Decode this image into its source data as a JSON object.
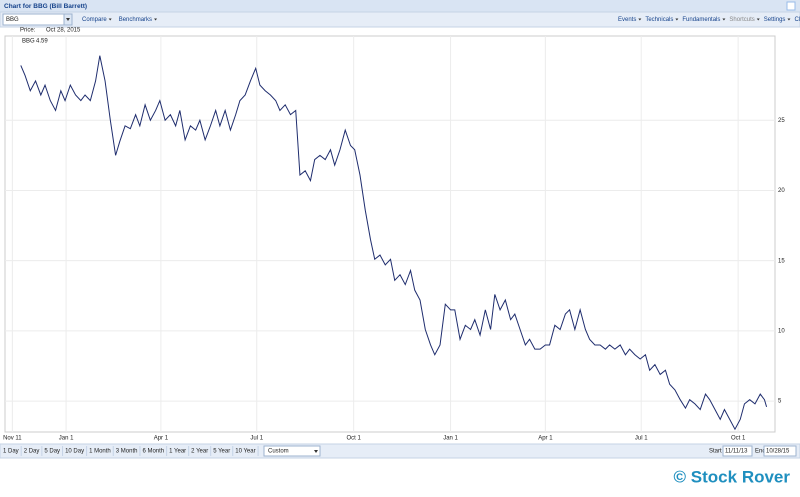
{
  "window": {
    "title": "Chart for BBG (Bill Barrett)"
  },
  "toolbar": {
    "symbol": "BBG",
    "left": [
      "Compare",
      "Benchmarks"
    ],
    "right": [
      "Events",
      "Technicals",
      "Fundamentals",
      "Shortcuts",
      "Settings",
      "Clear"
    ]
  },
  "chart_data": {
    "type": "line",
    "price_label": "Price:",
    "date": "Oct 28, 2015",
    "xlim": [
      -7,
      724
    ],
    "ylim": [
      2.8,
      31
    ],
    "xticks": [
      {
        "value": 0,
        "label": "Nov 11"
      },
      {
        "value": 51,
        "label": "Jan 1"
      },
      {
        "value": 141,
        "label": "Apr 1"
      },
      {
        "value": 232,
        "label": "Jul 1"
      },
      {
        "value": 324,
        "label": "Oct 1"
      },
      {
        "value": 416,
        "label": "Jan 1"
      },
      {
        "value": 506,
        "label": "Apr 1"
      },
      {
        "value": 597,
        "label": "Jul 1"
      },
      {
        "value": 689,
        "label": "Oct 1"
      }
    ],
    "yticks": [
      5,
      10,
      15,
      20,
      25
    ],
    "grid": true,
    "x": [
      8,
      12,
      17,
      22,
      27,
      31,
      36,
      41,
      46,
      50,
      55,
      60,
      65,
      69,
      74,
      79,
      83,
      88,
      93,
      98,
      102,
      107,
      112,
      117,
      121,
      126,
      131,
      136,
      140,
      145,
      150,
      155,
      159,
      164,
      169,
      174,
      178,
      183,
      188,
      193,
      197,
      202,
      207,
      212,
      216,
      221,
      226,
      231,
      235,
      240,
      245,
      250,
      254,
      259,
      264,
      269,
      273,
      278,
      283,
      287,
      292,
      297,
      302,
      306,
      311,
      316,
      321,
      325,
      330,
      335,
      340,
      344,
      349,
      354,
      359,
      363,
      368,
      373,
      378,
      382,
      387,
      392,
      397,
      401,
      406,
      411,
      416,
      420,
      425,
      430,
      435,
      439,
      444,
      449,
      454,
      458,
      463,
      468,
      473,
      477,
      482,
      487,
      491,
      496,
      501,
      506,
      510,
      515,
      520,
      525,
      529,
      534,
      539,
      544,
      548,
      553,
      558,
      563,
      567,
      572,
      577,
      582,
      586,
      591,
      596,
      601,
      605,
      610,
      615,
      620,
      624,
      629,
      634,
      639,
      643,
      648,
      653,
      658,
      662,
      667,
      672,
      676,
      681,
      686,
      691,
      695,
      700,
      705,
      710,
      714,
      716
    ],
    "series": [
      {
        "name": "BBG",
        "color": "#1f2d6e",
        "legend_value": "4.59",
        "values": [
          28.9,
          28.2,
          27.1,
          27.8,
          26.8,
          27.5,
          26.4,
          25.7,
          27.1,
          26.4,
          27.5,
          26.8,
          26.4,
          26.8,
          26.4,
          27.8,
          29.6,
          27.8,
          25.0,
          22.5,
          23.5,
          24.6,
          24.4,
          25.4,
          24.6,
          26.1,
          25.0,
          25.7,
          26.4,
          25.0,
          25.4,
          24.6,
          25.7,
          23.6,
          24.6,
          24.3,
          25.0,
          23.6,
          24.6,
          25.7,
          24.6,
          25.7,
          24.3,
          25.4,
          26.4,
          26.8,
          27.8,
          28.7,
          27.5,
          27.1,
          26.8,
          26.4,
          25.7,
          26.1,
          25.4,
          25.7,
          21.1,
          21.4,
          20.7,
          22.2,
          22.5,
          22.2,
          22.9,
          21.8,
          22.9,
          24.3,
          23.2,
          22.9,
          21.1,
          18.6,
          16.5,
          15.1,
          15.4,
          14.7,
          15.1,
          13.6,
          14.0,
          13.3,
          14.3,
          12.9,
          12.2,
          10.1,
          9.0,
          8.3,
          9.0,
          11.9,
          11.5,
          11.5,
          9.4,
          10.4,
          10.1,
          10.8,
          9.7,
          11.5,
          10.1,
          12.6,
          11.5,
          12.2,
          10.8,
          11.2,
          10.1,
          9.0,
          9.4,
          8.7,
          8.7,
          9.0,
          9.0,
          10.4,
          10.1,
          11.2,
          11.5,
          10.1,
          11.5,
          10.1,
          9.4,
          9.0,
          9.0,
          8.7,
          9.0,
          8.7,
          9.0,
          8.3,
          8.7,
          8.3,
          8.0,
          8.3,
          7.2,
          7.6,
          6.9,
          7.2,
          6.2,
          5.8,
          5.1,
          4.5,
          5.1,
          4.8,
          4.4,
          5.5,
          5.1,
          4.4,
          3.7,
          4.4,
          3.7,
          3.0,
          3.7,
          4.8,
          5.1,
          4.8,
          5.5,
          5.1,
          4.59
        ]
      }
    ]
  },
  "range_bar": {
    "buttons": [
      "1 Day",
      "2 Day",
      "5 Day",
      "10 Day",
      "1 Month",
      "3 Month",
      "6 Month",
      "1 Year",
      "2 Year",
      "5 Year",
      "10 Year"
    ],
    "period": "Custom",
    "start_label": "Start",
    "start": "11/11/13",
    "end_label": "End",
    "end": "10/28/15"
  },
  "watermark": "© Stock Rover"
}
